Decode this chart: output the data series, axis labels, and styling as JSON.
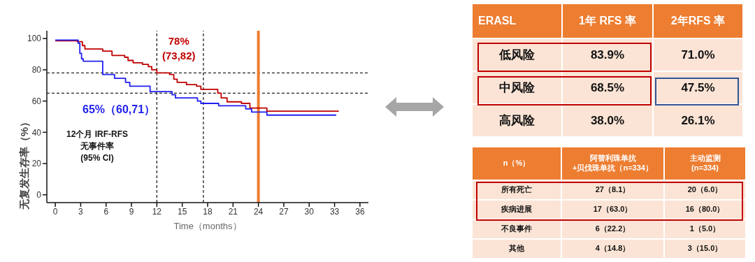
{
  "chart_data": [
    {
      "type": "step",
      "xlabel": "Time（months）",
      "ylabel": "无复发生存率（%）",
      "xlim": [
        -1,
        37
      ],
      "xticks": [
        0,
        3,
        6,
        9,
        12,
        15,
        18,
        21,
        24,
        27,
        30,
        33,
        36
      ],
      "ylim": [
        -5,
        105
      ],
      "yticks": [
        0,
        20,
        40,
        60,
        80,
        100
      ],
      "marker": "none",
      "line_style": "solid",
      "series": [
        {
          "color": "#c00000",
          "x": [
            0,
            2.6,
            3.2,
            3.5,
            5.6,
            6.7,
            8.2,
            8.6,
            9.2,
            10.3,
            11,
            11.4,
            12,
            13.5,
            14,
            14.4,
            15.5,
            16.7,
            17.2,
            19.2,
            19.6,
            20.3,
            22,
            23,
            25,
            33.5
          ],
          "values": [
            98.6,
            98,
            95.5,
            93.3,
            92,
            89.2,
            88,
            86,
            84.5,
            83.5,
            82,
            80,
            78,
            77,
            74,
            72,
            70.5,
            69.5,
            67.5,
            65,
            62,
            59.5,
            58.5,
            55.5,
            53.5,
            53.5
          ]
        },
        {
          "color": "#1f1ff0",
          "x": [
            0,
            2.7,
            2.9,
            3.1,
            3.3,
            5.6,
            7,
            8.3,
            8.8,
            11.2,
            13.8,
            14.2,
            16.8,
            17.2,
            19.3,
            22.5,
            23.2,
            25,
            33.2
          ],
          "values": [
            99,
            97,
            90.5,
            87,
            85.5,
            77,
            74.5,
            72,
            69.5,
            66,
            64,
            62,
            60,
            58.5,
            57,
            55,
            53,
            51,
            51
          ]
        }
      ],
      "ref_lines": [
        {
          "axis": "y",
          "value": 78,
          "color": "#222222",
          "line_style": "dashed"
        },
        {
          "axis": "y",
          "value": 65,
          "color": "#222222",
          "line_style": "dashed"
        },
        {
          "axis": "x",
          "value": 12,
          "color": "#222222",
          "line_style": "dashed"
        },
        {
          "axis": "x",
          "value": 17.5,
          "color": "#222222",
          "line_style": "dashed"
        },
        {
          "axis": "x",
          "value": 24,
          "color": "#ed7d31",
          "line_style": "solid"
        }
      ],
      "annotations": [
        "78%\n(73,82)",
        "65%（60,71）",
        "12个月 IRF-RFS\n无事件率\n(95% CI)"
      ]
    },
    {
      "type": "other",
      "categories": [
        "ERASL",
        "1年 RFS 率",
        "2年RFS 率"
      ],
      "y_categories": [
        "低风险",
        "中风险",
        "高风险"
      ],
      "cell_labels": [
        [
          "83.9%",
          "71.0%"
        ],
        [
          "68.5%",
          "47.5%"
        ],
        [
          "38.0%",
          "26.1%"
        ]
      ]
    },
    {
      "type": "other",
      "categories": [
        "n（%）",
        "阿替利珠单抗\n+贝伐珠单抗（n=334）",
        "主动监测\n(n=334)"
      ],
      "y_categories": [
        "所有死亡",
        "疾病进展",
        "不良事件",
        "其他"
      ],
      "cell_labels": [
        [
          "27（8.1）",
          "20（6.0）"
        ],
        [
          "17（63.0）",
          "16（80.0）"
        ],
        [
          "6（22.2）",
          "1（5.0）"
        ],
        [
          "4（14.8）",
          "3（15.0）"
        ]
      ]
    }
  ]
}
